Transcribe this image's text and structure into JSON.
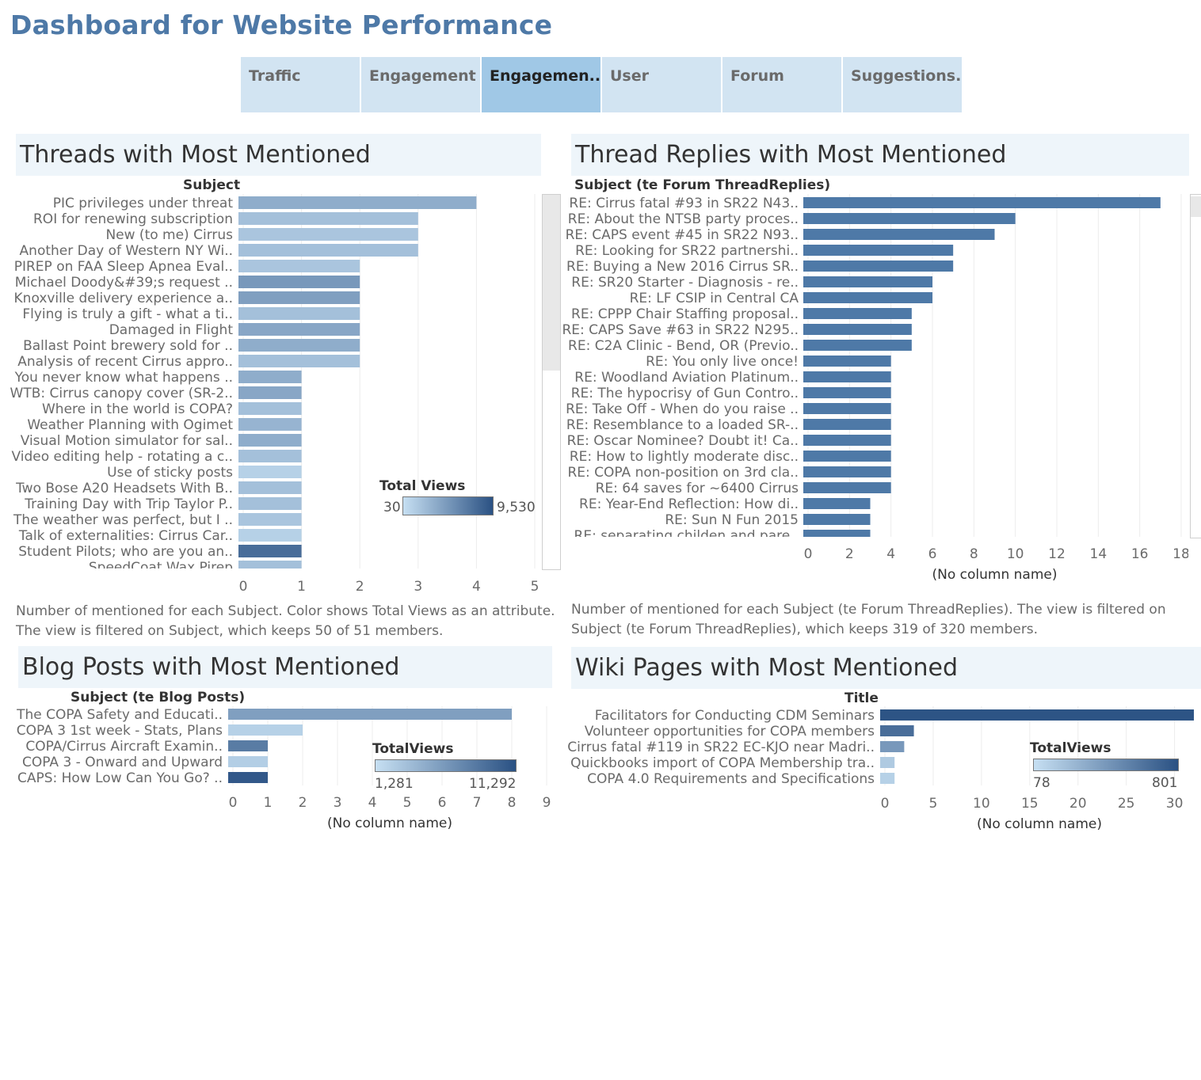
{
  "dashboard_title": "Dashboard for Website Performance",
  "tabs": [
    {
      "label": "Traffic",
      "active": false
    },
    {
      "label": "Engagement",
      "active": false
    },
    {
      "label": "Engagemen..",
      "active": true
    },
    {
      "label": "User",
      "active": false
    },
    {
      "label": "Forum",
      "active": false
    },
    {
      "label": "Suggestions..",
      "active": false
    }
  ],
  "colors": {
    "accent": "#4e79a7",
    "light": "#c6dff2",
    "dark": "#2a5183",
    "panel_bg": "#eef5fa"
  },
  "panels": {
    "threads": {
      "title": "Threads with Most Mentioned",
      "column_header": "Subject",
      "caption_line1": "Number of mentioned for each Subject.  Color shows Total Views as an attribute.",
      "caption_line2": "The view is filtered on Subject, which keeps 50 of 51 members.",
      "legend_title": "Total Views",
      "legend_min": "30",
      "legend_max": "9,530"
    },
    "replies": {
      "title": "Thread Replies with Most Mentioned",
      "column_header": "Subject (te Forum ThreadReplies)",
      "xlabel": "(No column name)",
      "caption_line1": "Number of mentioned for each Subject (te Forum ThreadReplies). The view is filtered on",
      "caption_line2": "Subject (te Forum ThreadReplies), which keeps 319 of 320 members."
    },
    "blog": {
      "title": "Blog Posts with Most Mentioned",
      "column_header": "Subject (te Blog Posts)",
      "xlabel": "(No column name)",
      "legend_title": "TotalViews",
      "legend_min": "1,281",
      "legend_max": "11,292"
    },
    "wiki": {
      "title": "Wiki Pages with Most Mentioned",
      "column_header": "Title",
      "xlabel": "(No column name)",
      "legend_title": "TotalViews",
      "legend_min": "78",
      "legend_max": "801"
    }
  },
  "chart_data": [
    {
      "id": "threads",
      "type": "bar",
      "orientation": "horizontal",
      "title": "Threads with Most Mentioned",
      "ylabel": "Subject",
      "xlabel": "",
      "xlim": [
        0,
        5
      ],
      "xticks": [
        0,
        1,
        2,
        3,
        4,
        5
      ],
      "grid": true,
      "categories": [
        "PIC privileges under threat",
        "ROI for renewing subscription",
        "New (to me) Cirrus",
        "Another Day of Western NY Wi..",
        "PIREP on FAA Sleep Apnea Eval..",
        "Michael Doody&#39;s request ..",
        "Knoxville delivery experience a..",
        "Flying is truly a gift - what a ti..",
        "Damaged in Flight",
        "Ballast Point brewery sold for ..",
        "Analysis of recent Cirrus appro..",
        "You never know what happens ..",
        "WTB: Cirrus canopy cover (SR-2..",
        "Where in the world is COPA?",
        "Weather Planning with Ogimet",
        "Visual Motion simulator for sal..",
        "Video editing help - rotating a c..",
        "Use of sticky posts",
        "Two Bose A20 Headsets With B..",
        "Training Day with Trip Taylor P..",
        "The weather was perfect, but I ..",
        "Talk of externalities: Cirrus Car..",
        "Student Pilots; who are you an..",
        "SpeedCoat Wax Pirep"
      ],
      "values": [
        4,
        3,
        3,
        3,
        2,
        2,
        2,
        2,
        2,
        2,
        2,
        1,
        1,
        1,
        1,
        1,
        1,
        1,
        1,
        1,
        1,
        1,
        1,
        1
      ],
      "color_values": [
        0.35,
        0.22,
        0.18,
        0.22,
        0.18,
        0.5,
        0.45,
        0.22,
        0.4,
        0.35,
        0.22,
        0.35,
        0.4,
        0.22,
        0.3,
        0.35,
        0.22,
        0.1,
        0.22,
        0.22,
        0.18,
        0.1,
        0.8,
        0.22
      ],
      "color_attribute": "Total Views",
      "color_range": [
        30,
        9530
      ]
    },
    {
      "id": "replies",
      "type": "bar",
      "orientation": "horizontal",
      "title": "Thread Replies with Most Mentioned",
      "ylabel": "Subject (te Forum ThreadReplies)",
      "xlabel": "(No column name)",
      "xlim": [
        0,
        18
      ],
      "xticks": [
        0,
        2,
        4,
        6,
        8,
        10,
        12,
        14,
        16,
        18
      ],
      "grid": true,
      "categories": [
        "RE: Cirrus fatal #93 in SR22 N43..",
        "RE: About the NTSB party proces..",
        "RE: CAPS event #45 in SR22 N93..",
        "RE: Looking for SR22 partnershi..",
        "RE: Buying a New 2016 Cirrus SR..",
        "RE: SR20 Starter - Diagnosis - re..",
        "RE: LF CSIP in Central CA",
        "RE: CPPP Chair Staffing proposal..",
        "RE: CAPS Save #63 in SR22 N295..",
        "RE: C2A Clinic - Bend, OR (Previo..",
        "RE: You only live once!",
        "RE: Woodland Aviation Platinum..",
        "RE: The hypocrisy of  Gun Contro..",
        "RE: Take Off - When do you raise ..",
        "RE: Resemblance to a loaded SR-..",
        "RE: Oscar Nominee? Doubt it! Ca..",
        "RE: How to lightly moderate disc..",
        "RE: COPA non-position on 3rd cla..",
        "RE: 64 saves for ~6400 Cirrus",
        "RE: Year-End Reflection: How di..",
        "RE: Sun N Fun 2015",
        "RE: separating childen and pare.."
      ],
      "values": [
        17,
        10,
        9,
        7,
        7,
        6,
        6,
        5,
        5,
        5,
        4,
        4,
        4,
        4,
        4,
        4,
        4,
        4,
        4,
        3,
        3,
        3
      ]
    },
    {
      "id": "blog",
      "type": "bar",
      "orientation": "horizontal",
      "title": "Blog Posts with Most Mentioned",
      "ylabel": "Subject (te Blog Posts)",
      "xlabel": "(No column name)",
      "xlim": [
        0,
        9
      ],
      "xticks": [
        0,
        1,
        2,
        3,
        4,
        5,
        6,
        7,
        8,
        9
      ],
      "grid": true,
      "categories": [
        "The COPA Safety and Educati..",
        "COPA 3 1st week - Stats, Plans",
        "COPA/Cirrus Aircraft Examin..",
        "COPA 3 - Onward and Upward",
        "CAPS: How Low Can You Go?  .."
      ],
      "values": [
        8,
        2,
        1,
        1,
        1
      ],
      "color_values": [
        0.45,
        0.1,
        0.7,
        0.12,
        0.95
      ],
      "color_attribute": "TotalViews",
      "color_range": [
        1281,
        11292
      ]
    },
    {
      "id": "wiki",
      "type": "bar",
      "orientation": "horizontal",
      "title": "Wiki Pages with Most Mentioned",
      "ylabel": "Title",
      "xlabel": "(No column name)",
      "xlim": [
        0,
        32
      ],
      "xticks": [
        0,
        5,
        10,
        15,
        20,
        25,
        30
      ],
      "grid": true,
      "categories": [
        "Facilitators for Conducting CDM Seminars",
        "Volunteer opportunities for COPA members",
        "Cirrus fatal #119 in SR22 EC-KJO near Madri..",
        "Quickbooks import of COPA Membership tra..",
        "COPA 4.0 Requirements and Specifications"
      ],
      "values": [
        32,
        3,
        2,
        1,
        1
      ],
      "color_values": [
        0.98,
        0.8,
        0.5,
        0.15,
        0.1
      ],
      "color_attribute": "TotalViews",
      "color_range": [
        78,
        801
      ]
    }
  ]
}
